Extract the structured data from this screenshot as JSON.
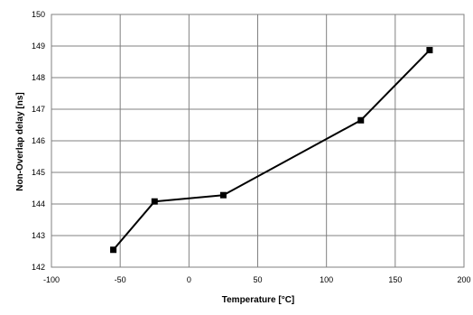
{
  "chart_data": {
    "type": "line",
    "title": "",
    "xlabel": "Temperature [°C]",
    "ylabel": "Non-Overlap delay  [ns]",
    "xlim": [
      -100,
      200
    ],
    "ylim": [
      142,
      150
    ],
    "xticks": [
      -100,
      -50,
      0,
      50,
      100,
      150,
      200
    ],
    "yticks": [
      142,
      143,
      144,
      145,
      146,
      147,
      148,
      149,
      150
    ],
    "x_tick_labels": [
      "-100",
      "-50",
      "0",
      "50",
      "100",
      "150",
      "200"
    ],
    "y_tick_labels": [
      "142",
      "143",
      "144",
      "145",
      "146",
      "147",
      "148",
      "149",
      "150"
    ],
    "grid": true,
    "legend": "none",
    "series": [
      {
        "color": "#000000",
        "marker": "square",
        "x": [
          -55,
          -25,
          25,
          125,
          175
        ],
        "y": [
          142.55,
          144.08,
          144.28,
          146.65,
          148.87
        ]
      }
    ]
  }
}
